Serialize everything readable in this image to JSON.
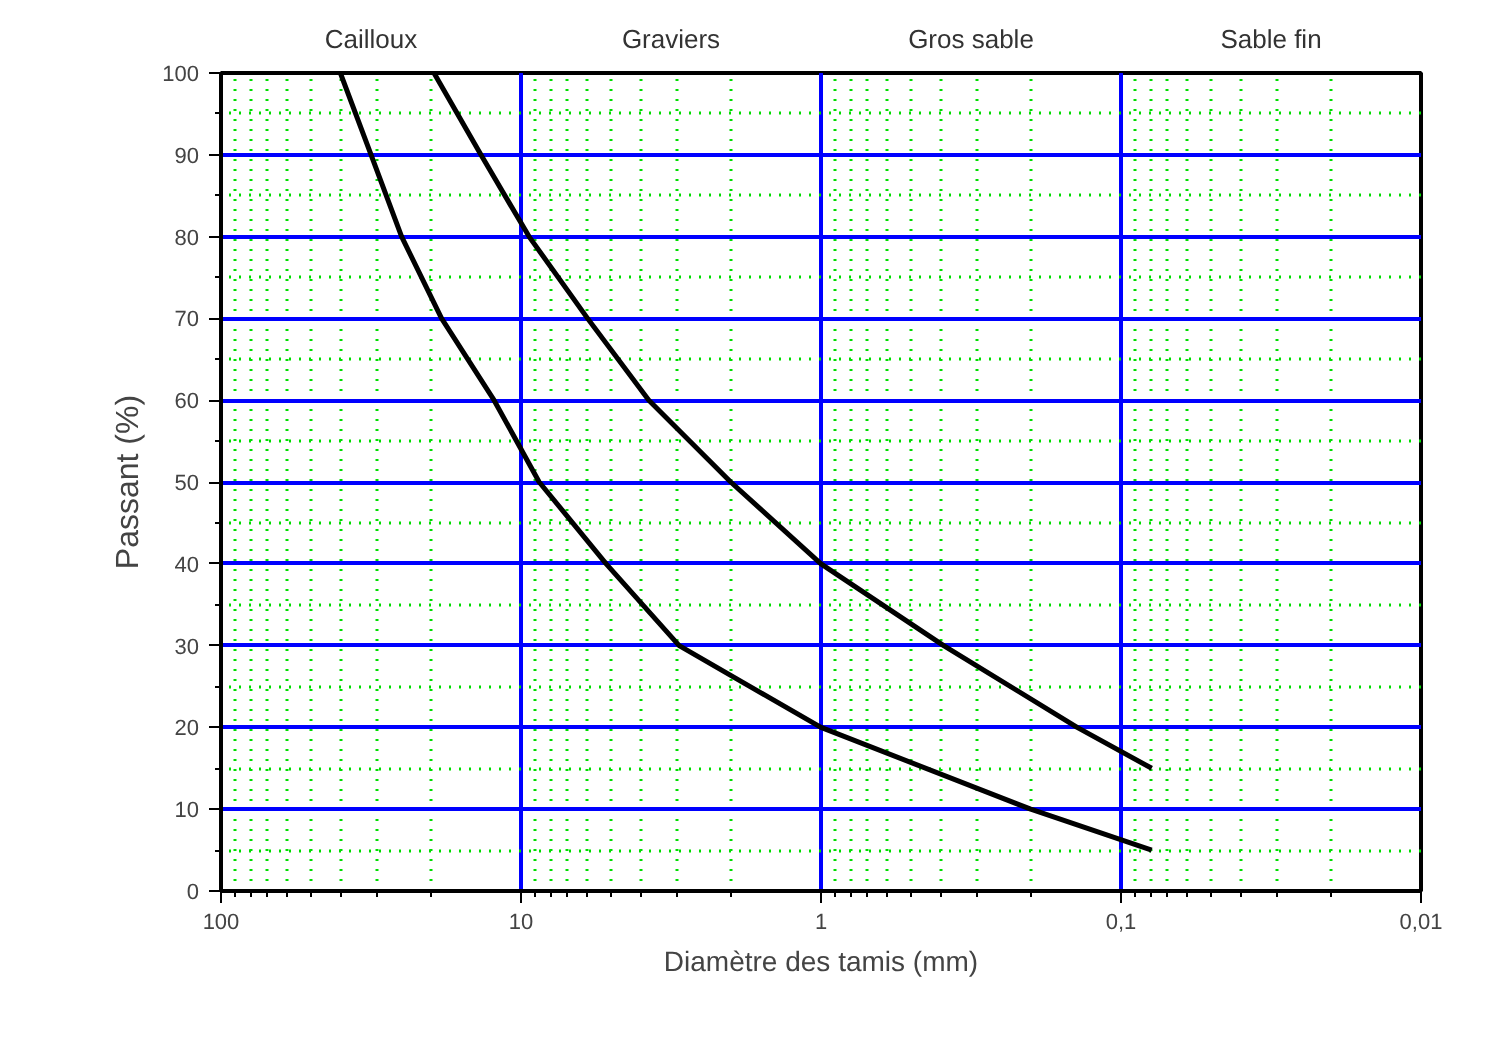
{
  "chart_data": {
    "type": "line",
    "xlabel": "Diamètre des tamis (mm)",
    "ylabel": "Passant (%)",
    "log": "x",
    "grid": true,
    "marker": "none",
    "line_style": "solid",
    "xlim": [
      100,
      0.01
    ],
    "xticks": [
      100,
      10,
      1,
      {
        "value": 0.1,
        "label": "0,1"
      },
      {
        "value": 0.01,
        "label": "0,01"
      }
    ],
    "ylim": [
      0,
      100
    ],
    "yticks": [
      0,
      {
        "value": 5,
        "label": null
      },
      10,
      {
        "value": 15,
        "label": null
      },
      20,
      {
        "value": 25,
        "label": null
      },
      30,
      {
        "value": 35,
        "label": null
      },
      40,
      {
        "value": 45,
        "label": null
      },
      50,
      {
        "value": 55,
        "label": null
      },
      60,
      {
        "value": 65,
        "label": null
      },
      70,
      {
        "value": 75,
        "label": null
      },
      80,
      {
        "value": 85,
        "label": null
      },
      90,
      {
        "value": 95,
        "label": null
      },
      100
    ],
    "annotations": [
      "Cailloux",
      "Graviers",
      "Gros sable",
      "Sable fin"
    ],
    "series": [
      {
        "color": "#000000",
        "x": [
          40,
          31.6,
          25,
          18.4,
          12.3,
          8.7,
          5.2,
          2.97,
          1.0,
          0.2,
          0.079
        ],
        "values": [
          100,
          90,
          80,
          70,
          60,
          50,
          40,
          30,
          20,
          10,
          5
        ]
      },
      {
        "color": "#000000",
        "x": [
          19.5,
          13.6,
          9.4,
          6.0,
          3.75,
          2.0,
          1.0,
          0.39,
          0.14,
          0.079
        ],
        "values": [
          100,
          90,
          80,
          70,
          60,
          50,
          40,
          30,
          20,
          15
        ]
      }
    ]
  }
}
